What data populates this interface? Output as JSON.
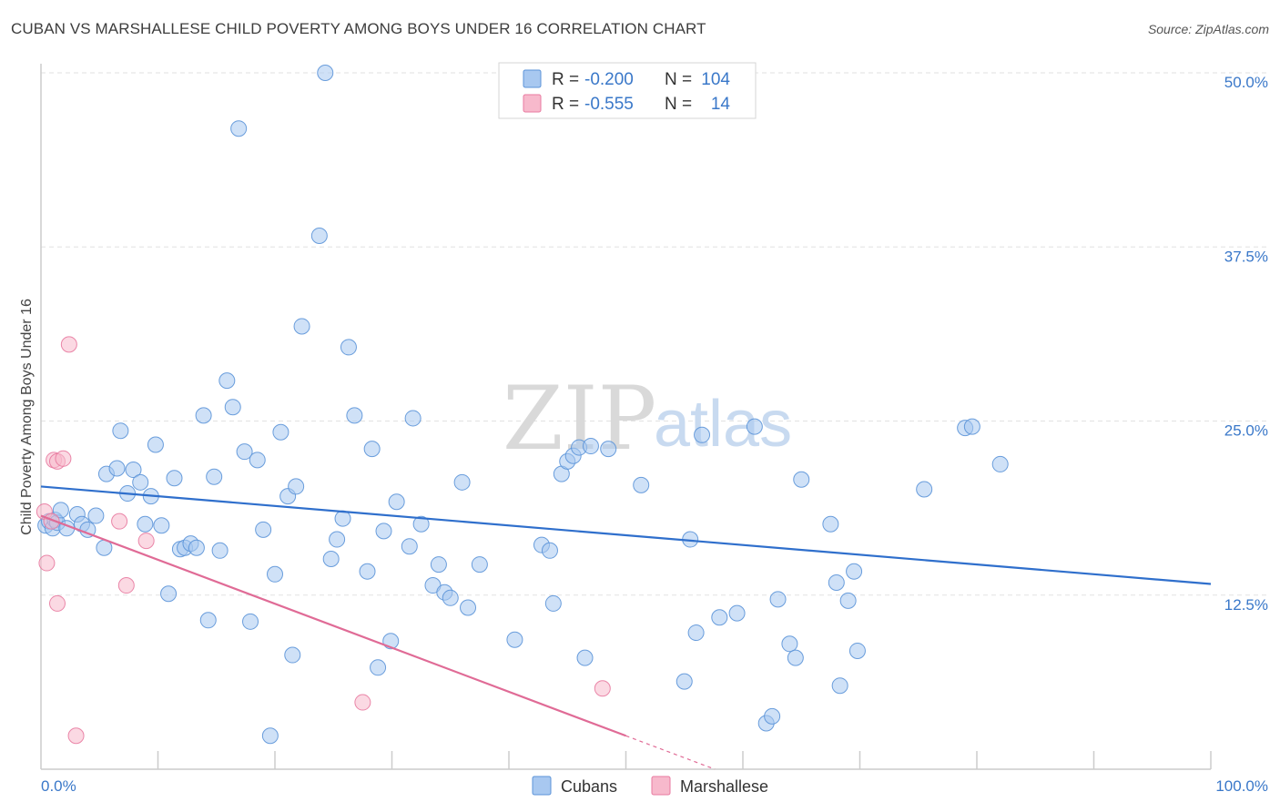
{
  "header": {
    "title": "CUBAN VS MARSHALLESE CHILD POVERTY AMONG BOYS UNDER 16 CORRELATION CHART",
    "source": "Source: ZipAtlas.com"
  },
  "watermark": {
    "zip": "ZIP",
    "atlas": "atlas"
  },
  "legend": {
    "rows": [
      {
        "r_label": "R =",
        "r_value": "-0.200",
        "n_label": "N =",
        "n_value": "104",
        "color": "#a8c8f0",
        "stroke": "#5b93d8"
      },
      {
        "r_label": "R =",
        "r_value": "-0.555",
        "n_label": "N =",
        "n_value": "14",
        "color": "#f7b9cc",
        "stroke": "#e87aa0"
      }
    ]
  },
  "bottom_legend": [
    {
      "label": "Cubans",
      "color": "#a8c8f0",
      "stroke": "#5b93d8"
    },
    {
      "label": "Marshallese",
      "color": "#f7b9cc",
      "stroke": "#e87aa0"
    }
  ],
  "chart_data": {
    "type": "scatter",
    "title": "CUBAN VS MARSHALLESE CHILD POVERTY AMONG BOYS UNDER 16 CORRELATION CHART",
    "xlabel": "",
    "ylabel": "Child Poverty Among Boys Under 16",
    "xlim": [
      0,
      100
    ],
    "ylim": [
      0,
      50
    ],
    "x_tick_labels": [
      "0.0%",
      "100.0%"
    ],
    "y_ticks": [
      12.5,
      25.0,
      37.5,
      50.0
    ],
    "y_tick_labels": [
      "12.5%",
      "25.0%",
      "37.5%",
      "50.0%"
    ],
    "grid": true,
    "legend_position": "top-center",
    "series": [
      {
        "name": "Cubans",
        "color": "#a8c8f0",
        "stroke": "#5b93d8",
        "trend": {
          "x": [
            0,
            100
          ],
          "y": [
            20.3,
            13.3
          ],
          "color": "#2f6fcc"
        },
        "points": [
          [
            0.4,
            17.5
          ],
          [
            0.7,
            17.8
          ],
          [
            1.0,
            17.3
          ],
          [
            1.2,
            17.9
          ],
          [
            1.4,
            17.7
          ],
          [
            1.7,
            18.6
          ],
          [
            2.2,
            17.3
          ],
          [
            3.1,
            18.3
          ],
          [
            3.5,
            17.6
          ],
          [
            4.0,
            17.2
          ],
          [
            4.7,
            18.2
          ],
          [
            5.4,
            15.9
          ],
          [
            5.6,
            21.2
          ],
          [
            6.5,
            21.6
          ],
          [
            6.8,
            24.3
          ],
          [
            7.4,
            19.8
          ],
          [
            7.9,
            21.5
          ],
          [
            8.5,
            20.6
          ],
          [
            8.9,
            17.6
          ],
          [
            9.4,
            19.6
          ],
          [
            9.8,
            23.3
          ],
          [
            10.3,
            17.5
          ],
          [
            10.9,
            12.6
          ],
          [
            11.4,
            20.9
          ],
          [
            11.9,
            15.8
          ],
          [
            12.3,
            15.9
          ],
          [
            12.8,
            16.2
          ],
          [
            13.3,
            15.9
          ],
          [
            13.9,
            25.4
          ],
          [
            14.3,
            10.7
          ],
          [
            14.8,
            21.0
          ],
          [
            15.3,
            15.7
          ],
          [
            15.9,
            27.9
          ],
          [
            16.4,
            26.0
          ],
          [
            16.9,
            46.0
          ],
          [
            17.4,
            22.8
          ],
          [
            17.9,
            10.6
          ],
          [
            18.5,
            22.2
          ],
          [
            19.0,
            17.2
          ],
          [
            19.6,
            2.4
          ],
          [
            20.0,
            14.0
          ],
          [
            20.5,
            24.2
          ],
          [
            21.1,
            19.6
          ],
          [
            21.5,
            8.2
          ],
          [
            21.8,
            20.3
          ],
          [
            22.3,
            31.8
          ],
          [
            23.8,
            38.3
          ],
          [
            24.3,
            50.0
          ],
          [
            24.8,
            15.1
          ],
          [
            25.3,
            16.5
          ],
          [
            25.8,
            18.0
          ],
          [
            26.3,
            30.3
          ],
          [
            26.8,
            25.4
          ],
          [
            27.9,
            14.2
          ],
          [
            28.3,
            23.0
          ],
          [
            28.8,
            7.3
          ],
          [
            29.3,
            17.1
          ],
          [
            29.9,
            9.2
          ],
          [
            30.4,
            19.2
          ],
          [
            31.5,
            16.0
          ],
          [
            31.8,
            25.2
          ],
          [
            32.5,
            17.6
          ],
          [
            33.5,
            13.2
          ],
          [
            34.0,
            14.7
          ],
          [
            34.5,
            12.7
          ],
          [
            35.0,
            12.3
          ],
          [
            36.0,
            20.6
          ],
          [
            36.5,
            11.6
          ],
          [
            37.5,
            14.7
          ],
          [
            40.5,
            9.3
          ],
          [
            42.8,
            16.1
          ],
          [
            43.5,
            15.7
          ],
          [
            43.8,
            11.9
          ],
          [
            44.5,
            21.2
          ],
          [
            45.0,
            22.1
          ],
          [
            45.5,
            22.5
          ],
          [
            46.0,
            23.1
          ],
          [
            46.5,
            8.0
          ],
          [
            47.0,
            23.2
          ],
          [
            48.5,
            23.0
          ],
          [
            51.3,
            20.4
          ],
          [
            55.0,
            6.3
          ],
          [
            55.5,
            16.5
          ],
          [
            56.0,
            9.8
          ],
          [
            56.5,
            24.0
          ],
          [
            58.0,
            10.9
          ],
          [
            59.5,
            11.2
          ],
          [
            61.0,
            24.6
          ],
          [
            62.0,
            3.3
          ],
          [
            62.5,
            3.8
          ],
          [
            63.0,
            12.2
          ],
          [
            64.0,
            9.0
          ],
          [
            64.5,
            8.0
          ],
          [
            65.0,
            20.8
          ],
          [
            67.5,
            17.6
          ],
          [
            68.0,
            13.4
          ],
          [
            68.3,
            6.0
          ],
          [
            69.0,
            12.1
          ],
          [
            69.5,
            14.2
          ],
          [
            69.8,
            8.5
          ],
          [
            75.5,
            20.1
          ],
          [
            79.0,
            24.5
          ],
          [
            79.6,
            24.6
          ],
          [
            82.0,
            21.9
          ]
        ]
      },
      {
        "name": "Marshallese",
        "color": "#f7b9cc",
        "stroke": "#e87aa0",
        "trend": {
          "x": [
            0,
            50
          ],
          "y": [
            18.2,
            2.4
          ],
          "dashed_to": {
            "x": 57.6,
            "y": 0
          },
          "color": "#e06b96"
        },
        "points": [
          [
            0.3,
            18.5
          ],
          [
            0.5,
            14.8
          ],
          [
            0.9,
            17.8
          ],
          [
            1.1,
            22.2
          ],
          [
            1.4,
            22.1
          ],
          [
            1.4,
            11.9
          ],
          [
            1.9,
            22.3
          ],
          [
            2.4,
            30.5
          ],
          [
            3.0,
            2.4
          ],
          [
            6.7,
            17.8
          ],
          [
            7.3,
            13.2
          ],
          [
            9.0,
            16.4
          ],
          [
            27.5,
            4.8
          ],
          [
            48.0,
            5.8
          ]
        ]
      }
    ]
  }
}
